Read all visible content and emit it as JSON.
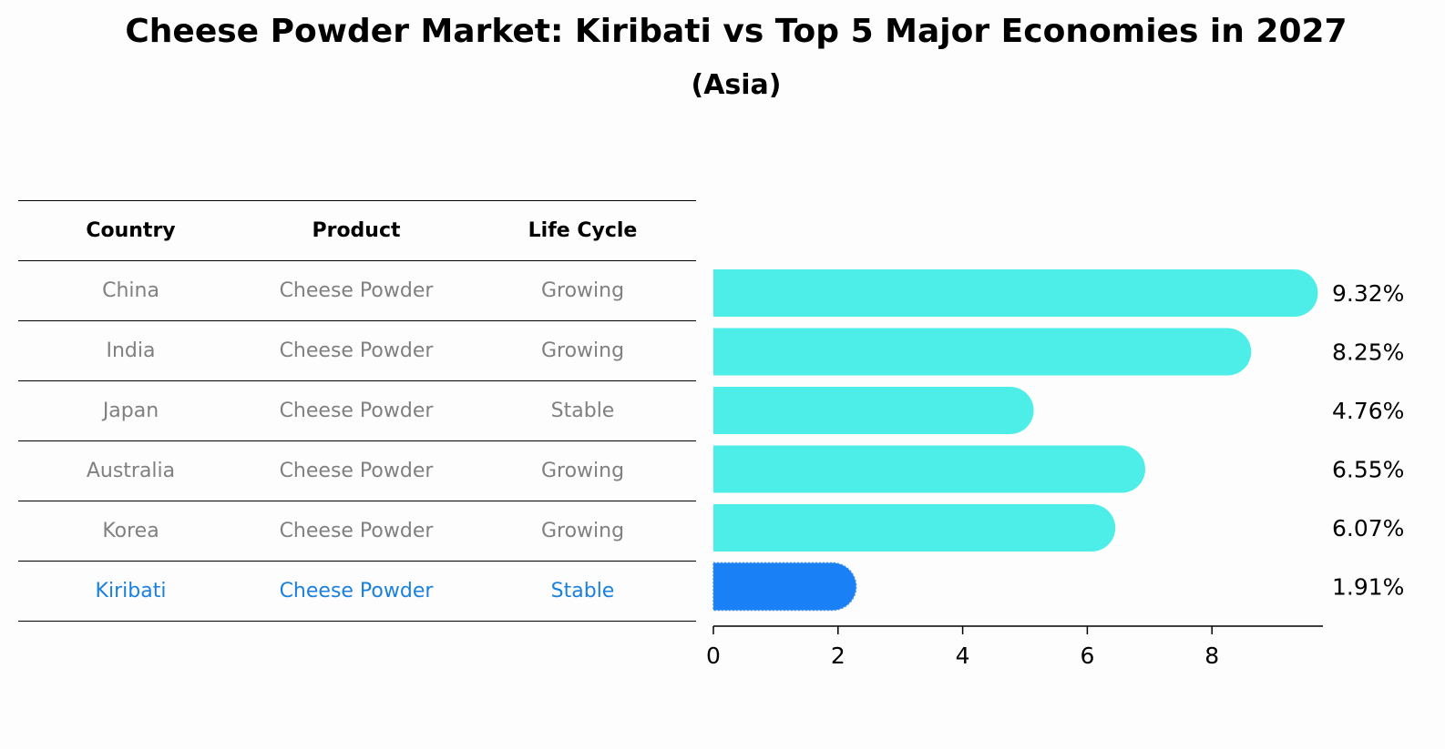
{
  "header": {
    "title": "Cheese Powder Market: Kiribati vs Top 5 Major Economies in 2027",
    "subtitle": "(Asia)"
  },
  "table": {
    "columns": [
      "Country",
      "Product",
      "Life Cycle"
    ],
    "rows": [
      {
        "country": "China",
        "product": "Cheese Powder",
        "life_cycle": "Growing"
      },
      {
        "country": "India",
        "product": "Cheese Powder",
        "life_cycle": "Growing"
      },
      {
        "country": "Japan",
        "product": "Cheese Powder",
        "life_cycle": "Stable"
      },
      {
        "country": "Australia",
        "product": "Cheese Powder",
        "life_cycle": "Growing"
      },
      {
        "country": "Korea",
        "product": "Cheese Powder",
        "life_cycle": "Growing"
      },
      {
        "country": "Kiribati",
        "product": "Cheese Powder",
        "life_cycle": "Stable"
      }
    ]
  },
  "colors": {
    "bar": "#4deee8",
    "highlight": "#1a80f5",
    "muted_text": "#808080",
    "highlight_text": "#1a80e0"
  },
  "chart_data": {
    "type": "bar",
    "orientation": "horizontal",
    "title": "Cheese Powder Market: Kiribati vs Top 5 Major Economies in 2027",
    "subtitle": "(Asia)",
    "categories": [
      "China",
      "India",
      "Japan",
      "Australia",
      "Korea",
      "Kiribati"
    ],
    "values": [
      9.32,
      8.25,
      4.76,
      6.55,
      6.07,
      1.91
    ],
    "value_labels": [
      "9.32%",
      "8.25%",
      "4.76%",
      "6.55%",
      "6.07%",
      "1.91%"
    ],
    "highlight_category": "Kiribati",
    "xticks": [
      0,
      2,
      4,
      6,
      8
    ],
    "xlim": [
      0,
      9.8
    ],
    "xlabel": "",
    "ylabel": "",
    "grid": false
  }
}
